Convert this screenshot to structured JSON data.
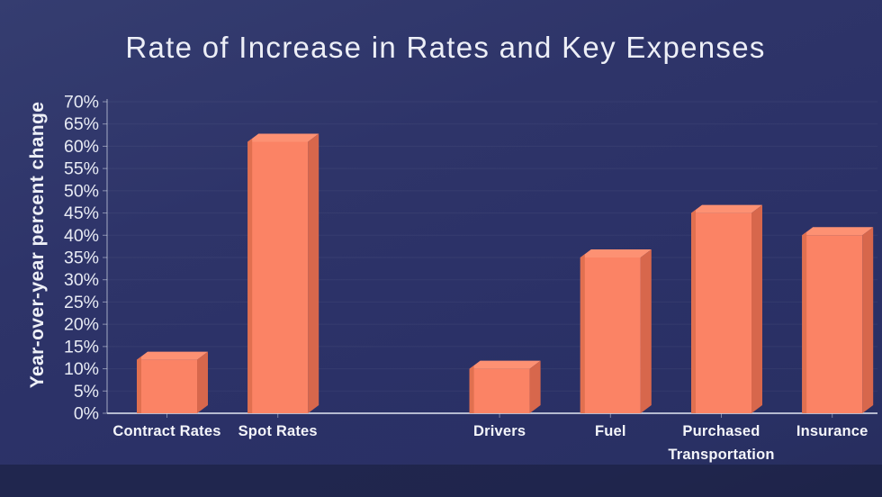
{
  "chart_data": {
    "type": "bar",
    "title": "Rate of Increase in Rates and Key Expenses",
    "ylabel": "Year-over-year percent change",
    "xlabel": "",
    "ylim": [
      0,
      70
    ],
    "ytick_step": 5,
    "ytick_labels": [
      "0%",
      "5%",
      "10%",
      "15%",
      "20%",
      "25%",
      "30%",
      "35%",
      "40%",
      "45%",
      "50%",
      "55%",
      "60%",
      "65%",
      "70%"
    ],
    "grid": "faint horizontal gridlines",
    "legend": "none",
    "bar_style": "3d",
    "categories": [
      "Contract Rates",
      "Spot Rates",
      "Drivers",
      "Fuel",
      "Purchased Transportation",
      "Insurance"
    ],
    "values": [
      12,
      61,
      10,
      35,
      45,
      40
    ],
    "groups": [
      {
        "name": "rates",
        "bars": [
          {
            "label": "Contract Rates",
            "value": 12
          },
          {
            "label": "Spot Rates",
            "value": 61
          }
        ]
      },
      {
        "name": "expenses",
        "bars": [
          {
            "label": "Drivers",
            "value": 10
          },
          {
            "label": "Fuel",
            "value": 35
          },
          {
            "label": "Purchased Transportation",
            "value": 45
          },
          {
            "label": "Insurance",
            "value": 40
          }
        ]
      }
    ],
    "colors": {
      "bar_front": "#fb8365",
      "bar_top": "#fd9173",
      "bar_side": "#d7674c",
      "bar_left_edge": "#e17050",
      "background": "#2b3167",
      "background_bottom": "#1f2447",
      "axis_line": "#d6dbe9",
      "text": "#f2f3f8"
    }
  }
}
